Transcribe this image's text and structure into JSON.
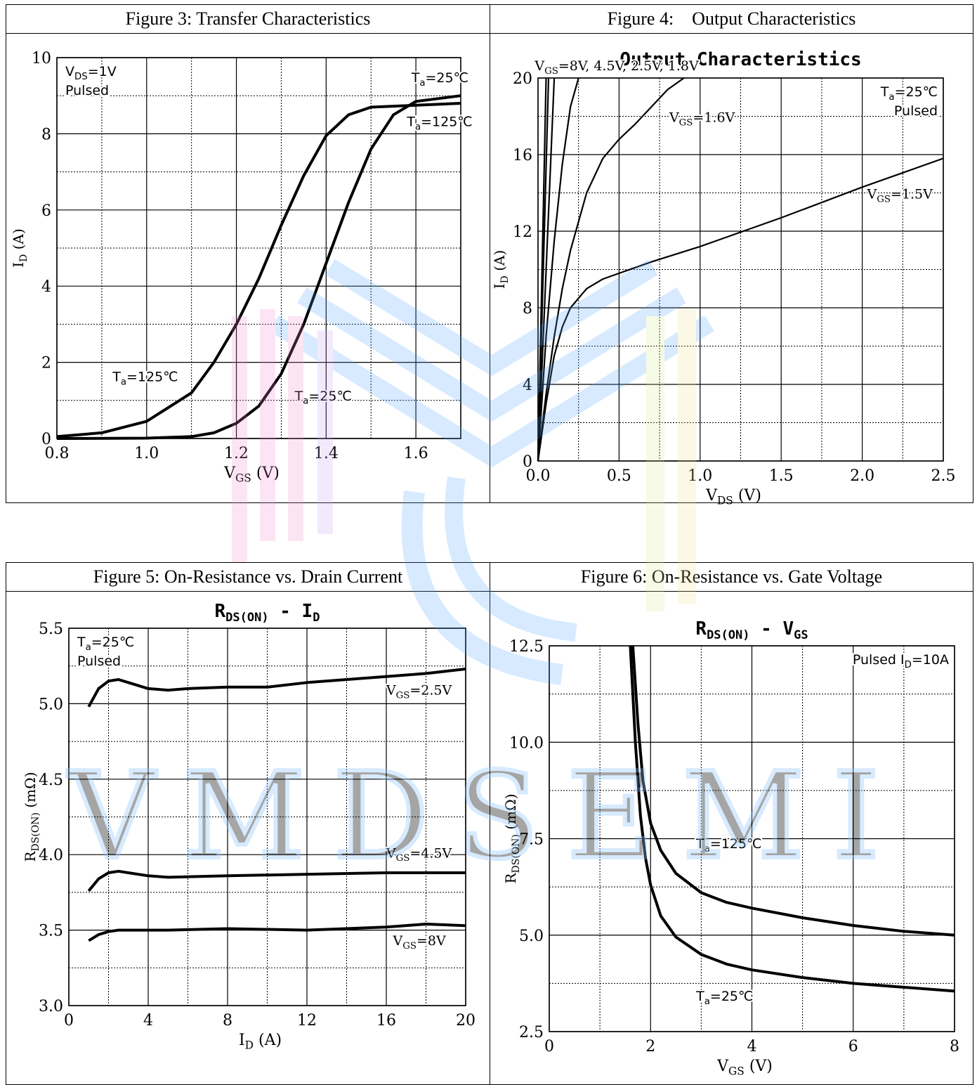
{
  "figures": {
    "fig3": {
      "title": "Figure 3: Transfer Characteristics"
    },
    "fig4": {
      "title": "Figure 4:    Output Characteristics"
    },
    "fig5": {
      "title": "Figure 5: On-Resistance vs. Drain Current"
    },
    "fig6": {
      "title": "Figure 6: On-Resistance vs. Gate Voltage"
    }
  },
  "watermark": {
    "text": "VMDSEMI",
    "color": "#8ec5ff"
  },
  "chart_data": [
    {
      "id": "fig3",
      "type": "line",
      "title": "",
      "xlabel_main": "V",
      "xlabel_sub": "GS",
      "xlabel_unit": "(V)",
      "ylabel_main": "I",
      "ylabel_sub": "D",
      "ylabel_unit": "(A)",
      "xlim": [
        0.8,
        1.7
      ],
      "ylim": [
        0,
        10
      ],
      "x_ticks": [
        0.8,
        1.0,
        1.2,
        1.4,
        1.6
      ],
      "x_tick_labels": [
        "0.8",
        "1.0",
        "1.2",
        "1.4",
        "1.6"
      ],
      "y_ticks": [
        0,
        2,
        4,
        6,
        8,
        10
      ],
      "y_tick_labels": [
        "0",
        "2",
        "4",
        "6",
        "8",
        "10"
      ],
      "grid": true,
      "conditions": [
        {
          "main": "V",
          "sub": "DS",
          "rest": "=1V"
        },
        {
          "main": "Pulsed",
          "sub": "",
          "rest": ""
        }
      ],
      "series": [
        {
          "name": "Ta=125°C",
          "x": [
            0.8,
            0.9,
            1.0,
            1.1,
            1.15,
            1.2,
            1.25,
            1.3,
            1.35,
            1.4,
            1.45,
            1.5,
            1.6,
            1.7
          ],
          "y": [
            0.05,
            0.15,
            0.45,
            1.2,
            2.0,
            3.0,
            4.2,
            5.6,
            6.9,
            7.95,
            8.5,
            8.7,
            8.75,
            8.8
          ]
        },
        {
          "name": "Ta=25°C",
          "x": [
            0.8,
            1.0,
            1.1,
            1.15,
            1.2,
            1.25,
            1.3,
            1.35,
            1.4,
            1.45,
            1.5,
            1.55,
            1.6,
            1.7
          ],
          "y": [
            0.0,
            0.01,
            0.05,
            0.15,
            0.4,
            0.85,
            1.7,
            3.0,
            4.6,
            6.2,
            7.6,
            8.5,
            8.85,
            9.0
          ]
        }
      ],
      "annotations": [
        {
          "main": "T",
          "sub": "a",
          "rest": "=25℃"
        },
        {
          "main": "T",
          "sub": "a",
          "rest": "=125℃"
        },
        {
          "main": "T",
          "sub": "a",
          "rest": "=125℃"
        },
        {
          "main": "T",
          "sub": "a",
          "rest": "=25℃"
        }
      ]
    },
    {
      "id": "fig4",
      "type": "line",
      "title": "Output Characteristics",
      "xlabel_main": "V",
      "xlabel_sub": "DS",
      "xlabel_unit": "(V)",
      "ylabel_main": "I",
      "ylabel_sub": "D",
      "ylabel_unit": "(A)",
      "xlim": [
        0,
        2.5
      ],
      "ylim": [
        0,
        20
      ],
      "x_ticks": [
        0,
        0.5,
        1.0,
        1.5,
        2.0,
        2.5
      ],
      "x_tick_labels": [
        "0.0",
        "0.5",
        "1.0",
        "1.5",
        "2.0",
        "2.5"
      ],
      "y_ticks": [
        0,
        4,
        8,
        12,
        16,
        20
      ],
      "y_tick_labels": [
        "0",
        "4",
        "8",
        "12",
        "16",
        "20"
      ],
      "grid": true,
      "conditions": [
        {
          "main": "T",
          "sub": "a",
          "rest": "=25℃"
        },
        {
          "main": "Pulsed",
          "sub": "",
          "rest": ""
        }
      ],
      "series": [
        {
          "name": "VGS=8V",
          "x": [
            0,
            0.05
          ],
          "y": [
            0,
            20
          ]
        },
        {
          "name": "VGS=4.5V",
          "x": [
            0,
            0.065
          ],
          "y": [
            0,
            20
          ]
        },
        {
          "name": "VGS=2.5V",
          "x": [
            0,
            0.1
          ],
          "y": [
            0,
            20
          ]
        },
        {
          "name": "VGS=1.8V",
          "x": [
            0,
            0.05,
            0.1,
            0.15,
            0.2,
            0.25
          ],
          "y": [
            0,
            6.5,
            11.5,
            15.5,
            18.5,
            20
          ]
        },
        {
          "name": "VGS=1.6V",
          "x": [
            0,
            0.05,
            0.1,
            0.15,
            0.2,
            0.3,
            0.4,
            0.5,
            0.6,
            0.7,
            0.8,
            0.9
          ],
          "y": [
            0,
            3.5,
            6.5,
            9.0,
            11.0,
            14.0,
            15.8,
            16.8,
            17.6,
            18.5,
            19.4,
            20
          ]
        },
        {
          "name": "VGS=1.5V",
          "x": [
            0,
            0.05,
            0.1,
            0.15,
            0.2,
            0.3,
            0.4,
            0.5,
            0.7,
            1.0,
            1.5,
            2.0,
            2.5
          ],
          "y": [
            0,
            3.0,
            5.5,
            7.0,
            8.0,
            9.0,
            9.5,
            9.8,
            10.4,
            11.2,
            12.7,
            14.3,
            15.8
          ]
        }
      ],
      "annotations": [
        {
          "main": "V",
          "sub": "GS",
          "rest": "=8V, 4.5V, 2.5V, 1.8V"
        },
        {
          "main": "V",
          "sub": "GS",
          "rest": "=1.6V"
        },
        {
          "main": "V",
          "sub": "GS",
          "rest": "=1.5V"
        }
      ]
    },
    {
      "id": "fig5",
      "type": "line",
      "title_main": "R",
      "title_sub": "DS(ON)",
      "title_rest": " - I",
      "title_sub2": "D",
      "xlabel_main": "I",
      "xlabel_sub": "D",
      "xlabel_unit": "(A)",
      "ylabel_main": "R",
      "ylabel_sub": "DS(ON)",
      "ylabel_unit": "(mΩ)",
      "xlim": [
        0,
        20
      ],
      "ylim": [
        3.0,
        5.5
      ],
      "x_ticks": [
        0,
        4,
        8,
        12,
        16,
        20
      ],
      "x_tick_labels": [
        "0",
        "4",
        "8",
        "12",
        "16",
        "20"
      ],
      "y_ticks": [
        3.0,
        3.5,
        4.0,
        4.5,
        5.0,
        5.5
      ],
      "y_tick_labels": [
        "3.0",
        "3.5",
        "4.0",
        "4.5",
        "5.0",
        "5.5"
      ],
      "grid": true,
      "conditions": [
        {
          "main": "T",
          "sub": "a",
          "rest": "=25℃"
        },
        {
          "main": "Pulsed",
          "sub": "",
          "rest": ""
        }
      ],
      "series": [
        {
          "name": "VGS=2.5V",
          "x": [
            1,
            1.5,
            2,
            2.5,
            3,
            4,
            5,
            6,
            8,
            10,
            12,
            14,
            16,
            18,
            20
          ],
          "y": [
            4.98,
            5.1,
            5.15,
            5.16,
            5.14,
            5.1,
            5.09,
            5.1,
            5.11,
            5.11,
            5.14,
            5.16,
            5.18,
            5.2,
            5.23
          ]
        },
        {
          "name": "VGS=4.5V",
          "x": [
            1,
            1.5,
            2,
            2.5,
            3,
            4,
            5,
            8,
            12,
            16,
            20
          ],
          "y": [
            3.76,
            3.84,
            3.88,
            3.89,
            3.88,
            3.86,
            3.85,
            3.86,
            3.87,
            3.88,
            3.88
          ]
        },
        {
          "name": "VGS=8V",
          "x": [
            1,
            1.5,
            2,
            2.5,
            3,
            5,
            8,
            12,
            16,
            18,
            20
          ],
          "y": [
            3.43,
            3.47,
            3.49,
            3.5,
            3.5,
            3.5,
            3.51,
            3.5,
            3.52,
            3.54,
            3.53
          ]
        }
      ],
      "annotations": [
        {
          "main": "V",
          "sub": "GS",
          "rest": "=2.5V"
        },
        {
          "main": "V",
          "sub": "GS",
          "rest": "=4.5V"
        },
        {
          "main": "V",
          "sub": "GS",
          "rest": "=8V"
        }
      ]
    },
    {
      "id": "fig6",
      "type": "line",
      "title_main": "R",
      "title_sub": "DS(ON)",
      "title_rest": " - V",
      "title_sub2": "GS",
      "xlabel_main": "V",
      "xlabel_sub": "GS",
      "xlabel_unit": "(V)",
      "ylabel_main": "R",
      "ylabel_sub": "DS(ON)",
      "ylabel_unit": "(mΩ)",
      "xlim": [
        0,
        8
      ],
      "ylim": [
        2.5,
        12.5
      ],
      "x_ticks": [
        0,
        2,
        4,
        6,
        8
      ],
      "x_tick_labels": [
        "0",
        "2",
        "4",
        "6",
        "8"
      ],
      "y_ticks": [
        2.5,
        5.0,
        7.5,
        10.0,
        12.5
      ],
      "y_tick_labels": [
        "2.5",
        "5.0",
        "7.5",
        "10.0",
        "12.5"
      ],
      "grid": true,
      "conditions": [
        {
          "main": "Pulsed I",
          "sub": "D",
          "rest": "=10A"
        }
      ],
      "series": [
        {
          "name": "Ta=125°C",
          "x": [
            1.65,
            1.75,
            1.85,
            2.0,
            2.2,
            2.5,
            3.0,
            3.5,
            4.0,
            5.0,
            6.0,
            7.0,
            8.0
          ],
          "y": [
            12.5,
            10.5,
            9.0,
            7.9,
            7.2,
            6.6,
            6.1,
            5.85,
            5.7,
            5.45,
            5.25,
            5.1,
            5.0
          ]
        },
        {
          "name": "Ta=25°C",
          "x": [
            1.6,
            1.7,
            1.8,
            1.9,
            2.0,
            2.2,
            2.5,
            3.0,
            3.5,
            4.0,
            5.0,
            6.0,
            7.0,
            8.0
          ],
          "y": [
            12.5,
            10.0,
            8.1,
            7.0,
            6.3,
            5.5,
            4.95,
            4.5,
            4.25,
            4.1,
            3.9,
            3.75,
            3.65,
            3.55
          ]
        }
      ],
      "annotations": [
        {
          "main": "T",
          "sub": "a",
          "rest": "=125℃"
        },
        {
          "main": "T",
          "sub": "a",
          "rest": "=25℃"
        }
      ]
    }
  ]
}
